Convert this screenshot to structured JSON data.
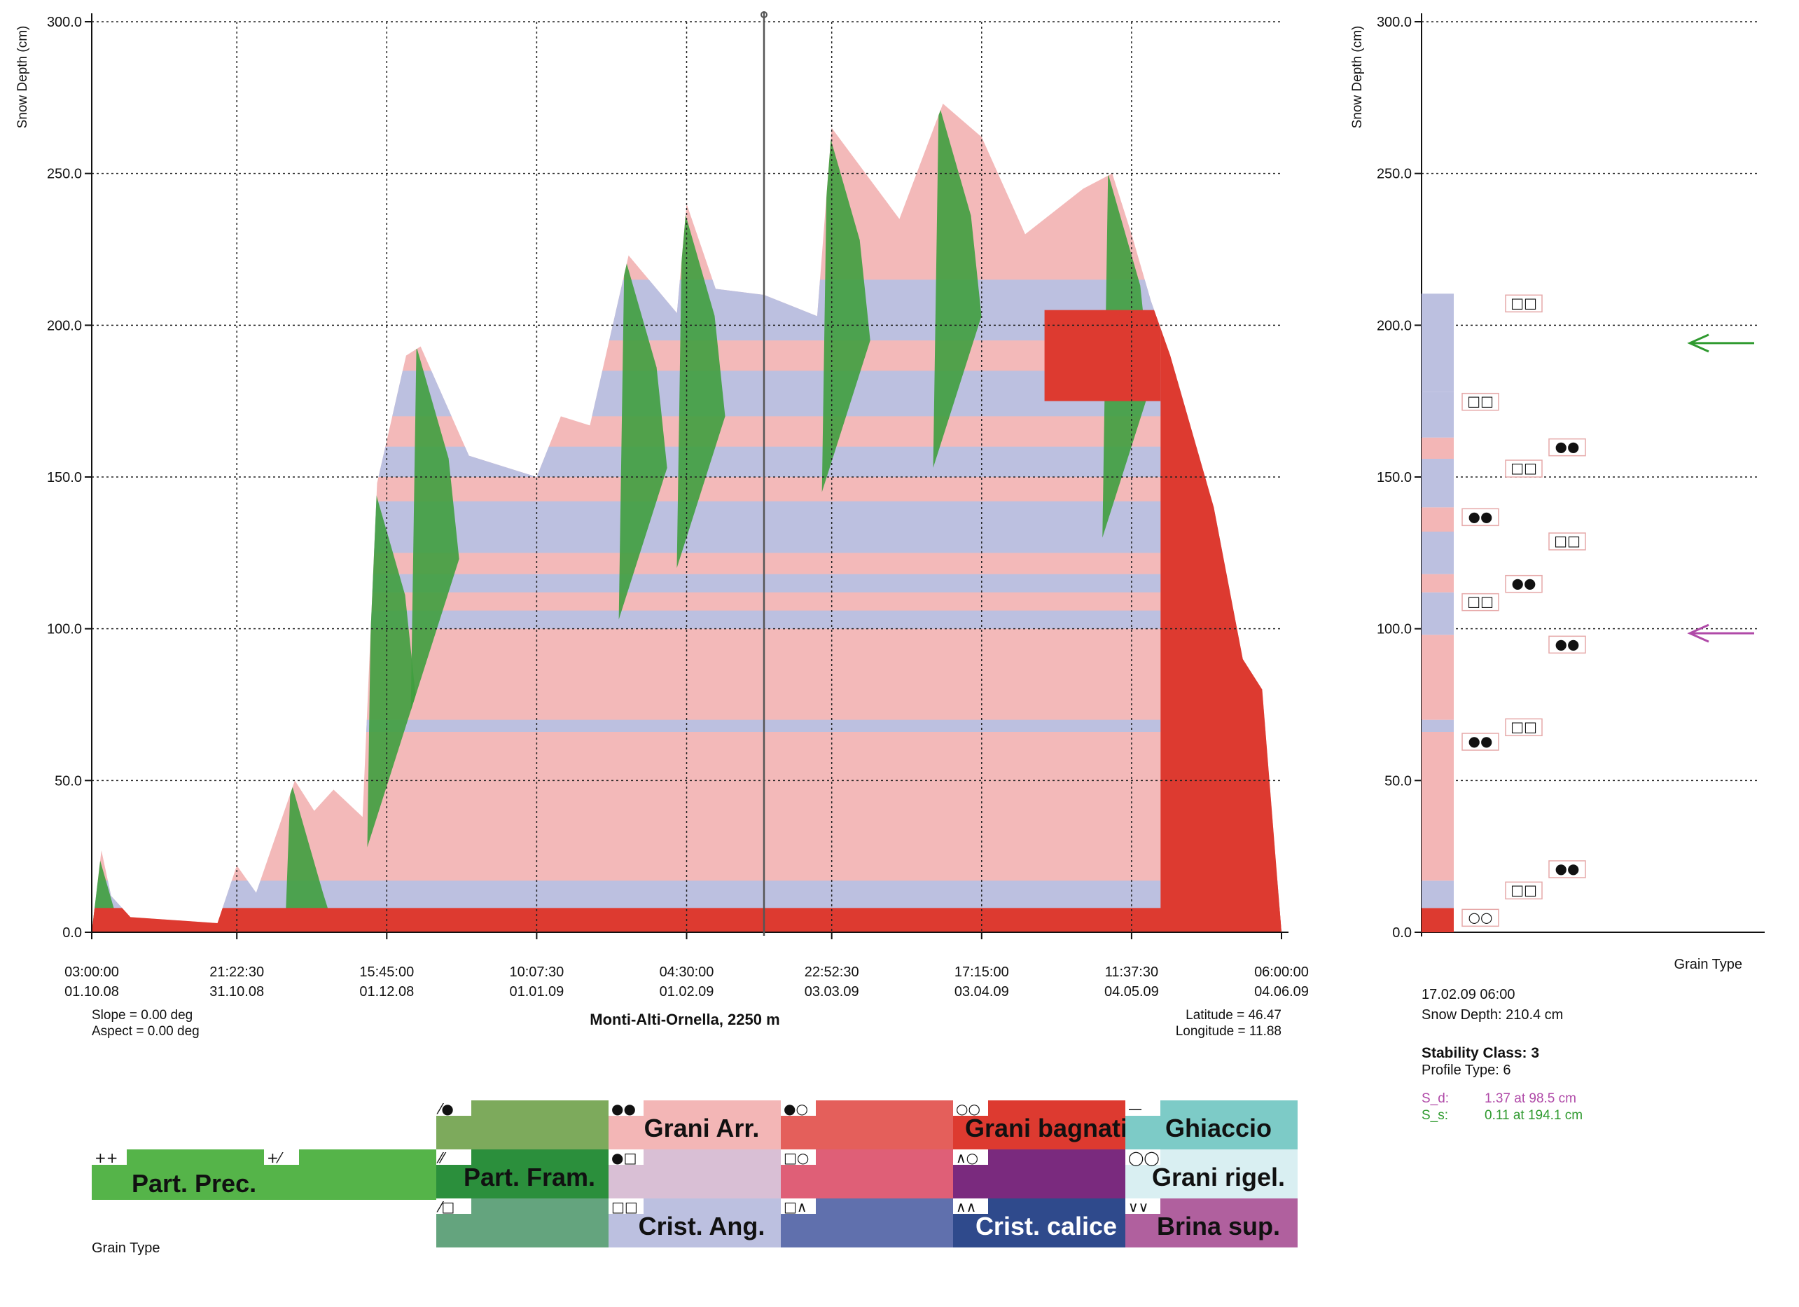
{
  "chart_data": {
    "type": "area",
    "main_panel": {
      "ylabel": "Snow Depth (cm)",
      "ylim": [
        0,
        300
      ],
      "y_ticks": [
        "0.0",
        "50.0",
        "100.0",
        "150.0",
        "200.0",
        "250.0",
        "300.0"
      ],
      "x_ticks": [
        {
          "time": "03:00:00",
          "date": "01.10.08"
        },
        {
          "time": "21:22:30",
          "date": "31.10.08"
        },
        {
          "time": "15:45:00",
          "date": "01.12.08"
        },
        {
          "time": "10:07:30",
          "date": "01.01.09"
        },
        {
          "time": "04:30:00",
          "date": "01.02.09"
        },
        {
          "time": "22:52:30",
          "date": "03.03.09"
        },
        {
          "time": "17:15:00",
          "date": "03.04.09"
        },
        {
          "time": "11:37:30",
          "date": "04.05.09"
        },
        {
          "time": "06:00:00",
          "date": "04.06.09"
        }
      ],
      "grid": true,
      "cursor_date": "17.02.09 06:00",
      "station": "Monti-Alti-Ornella, 2250 m",
      "slope": "Slope = 0.00 deg",
      "aspect": "Aspect = 0.00 deg",
      "latitude": "Latitude = 46.47",
      "longitude": "Longitude = 11.88",
      "snow_depth_series": [
        {
          "x": "01.10.08",
          "y": 0
        },
        {
          "x": "03.10.08",
          "y": 27
        },
        {
          "x": "05.10.08",
          "y": 12
        },
        {
          "x": "09.10.08",
          "y": 5
        },
        {
          "x": "27.10.08",
          "y": 3
        },
        {
          "x": "31.10.08",
          "y": 22
        },
        {
          "x": "04.11.08",
          "y": 13
        },
        {
          "x": "12.11.08",
          "y": 50
        },
        {
          "x": "16.11.08",
          "y": 40
        },
        {
          "x": "20.11.08",
          "y": 47
        },
        {
          "x": "26.11.08",
          "y": 38
        },
        {
          "x": "29.11.08",
          "y": 148
        },
        {
          "x": "05.12.08",
          "y": 190
        },
        {
          "x": "08.12.08",
          "y": 193
        },
        {
          "x": "18.12.08",
          "y": 157
        },
        {
          "x": "01.01.09",
          "y": 150
        },
        {
          "x": "06.01.09",
          "y": 170
        },
        {
          "x": "12.01.09",
          "y": 167
        },
        {
          "x": "20.01.09",
          "y": 223
        },
        {
          "x": "30.01.09",
          "y": 204
        },
        {
          "x": "01.02.09",
          "y": 240
        },
        {
          "x": "07.02.09",
          "y": 212
        },
        {
          "x": "17.02.09",
          "y": 210
        },
        {
          "x": "28.02.09",
          "y": 203
        },
        {
          "x": "03.03.09",
          "y": 265
        },
        {
          "x": "17.03.09",
          "y": 235
        },
        {
          "x": "26.03.09",
          "y": 273
        },
        {
          "x": "03.04.09",
          "y": 262
        },
        {
          "x": "12.04.09",
          "y": 230
        },
        {
          "x": "24.04.09",
          "y": 245
        },
        {
          "x": "30.04.09",
          "y": 250
        },
        {
          "x": "04.05.09",
          "y": 230
        },
        {
          "x": "08.05.09",
          "y": 208
        },
        {
          "x": "12.05.09",
          "y": 190
        },
        {
          "x": "21.05.09",
          "y": 140
        },
        {
          "x": "27.05.09",
          "y": 90
        },
        {
          "x": "31.05.09",
          "y": 80
        },
        {
          "x": "04.06.09",
          "y": 0
        }
      ]
    },
    "profile_panel": {
      "ylabel": "Snow Depth (cm)",
      "ylim": [
        0,
        300
      ],
      "y_ticks": [
        "0.0",
        "50.0",
        "100.0",
        "150.0",
        "200.0",
        "250.0",
        "300.0"
      ],
      "xlabel": "Grain Type",
      "date": "17.02.09 06:00",
      "snow_depth": "Snow Depth: 210.4 cm",
      "stability_class": "Stability Class: 3",
      "profile_type": "Profile Type: 6",
      "sd_label": "S_d:",
      "sd_value": "1.37 at 98.5 cm",
      "ss_label": "S_s:",
      "ss_value": "0.11 at 194.1 cm",
      "layers": [
        {
          "bottom": 0,
          "top": 8,
          "grain": "Grani bagnati"
        },
        {
          "bottom": 8,
          "top": 17,
          "grain": "Crist. Ang."
        },
        {
          "bottom": 17,
          "top": 24,
          "grain": "Grani Arr."
        },
        {
          "bottom": 24,
          "top": 66,
          "grain": "Grani Arr."
        },
        {
          "bottom": 66,
          "top": 70,
          "grain": "Crist. Ang."
        },
        {
          "bottom": 70,
          "top": 98,
          "grain": "Grani Arr."
        },
        {
          "bottom": 98,
          "top": 112,
          "grain": "Crist. Ang."
        },
        {
          "bottom": 112,
          "top": 118,
          "grain": "Grani Arr."
        },
        {
          "bottom": 118,
          "top": 132,
          "grain": "Crist. Ang."
        },
        {
          "bottom": 132,
          "top": 140,
          "grain": "Grani Arr."
        },
        {
          "bottom": 140,
          "top": 156,
          "grain": "Crist. Ang."
        },
        {
          "bottom": 156,
          "top": 163,
          "grain": "Grani Arr."
        },
        {
          "bottom": 163,
          "top": 178,
          "grain": "Crist. Ang."
        },
        {
          "bottom": 178,
          "top": 210.4,
          "grain": "Crist. Ang."
        }
      ],
      "markers": [
        {
          "depth": 98.5,
          "color": "#b04aa8"
        },
        {
          "depth": 194.1,
          "color": "#2f9a2f"
        }
      ]
    },
    "legend": {
      "title": "Grain Type",
      "entries": [
        {
          "symbol": "++",
          "label": "Part. Prec.",
          "color": "#55b449"
        },
        {
          "symbol": "+⁄",
          "label": "",
          "color": "#55b449"
        },
        {
          "symbol": "⁄●",
          "label": "",
          "color": "#7daa5c"
        },
        {
          "symbol": "⁄⁄",
          "label": "Part. Fram.",
          "color": "#2b8f3c"
        },
        {
          "symbol": "⁄□",
          "label": "",
          "color": "#64a47e"
        },
        {
          "symbol": "●●",
          "label": "Grani Arr.",
          "color": "#f3b6b6"
        },
        {
          "symbol": "●□",
          "label": "",
          "color": "#d9bfd5"
        },
        {
          "symbol": "□□",
          "label": "Crist. Ang.",
          "color": "#bcc0e0"
        },
        {
          "symbol": "●○",
          "label": "",
          "color": "#e45f5b"
        },
        {
          "symbol": "□○",
          "label": "",
          "color": "#df5f77"
        },
        {
          "symbol": "□∧",
          "label": "",
          "color": "#6070ad"
        },
        {
          "symbol": "○○",
          "label": "Grani bagnati",
          "color": "#dd3a30"
        },
        {
          "symbol": "∧○",
          "label": "",
          "color": "#7a2a7e"
        },
        {
          "symbol": "∧∧",
          "label": "Crist. calice",
          "color": "#2f4a8c"
        },
        {
          "symbol": "—",
          "label": "Ghiaccio",
          "color": "#7dcbc7"
        },
        {
          "symbol": "◯◯",
          "label": "Grani rigel.",
          "color": "#d9eff2"
        },
        {
          "symbol": "∨∨",
          "label": "Brina sup.",
          "color": "#b0609e"
        }
      ]
    }
  }
}
